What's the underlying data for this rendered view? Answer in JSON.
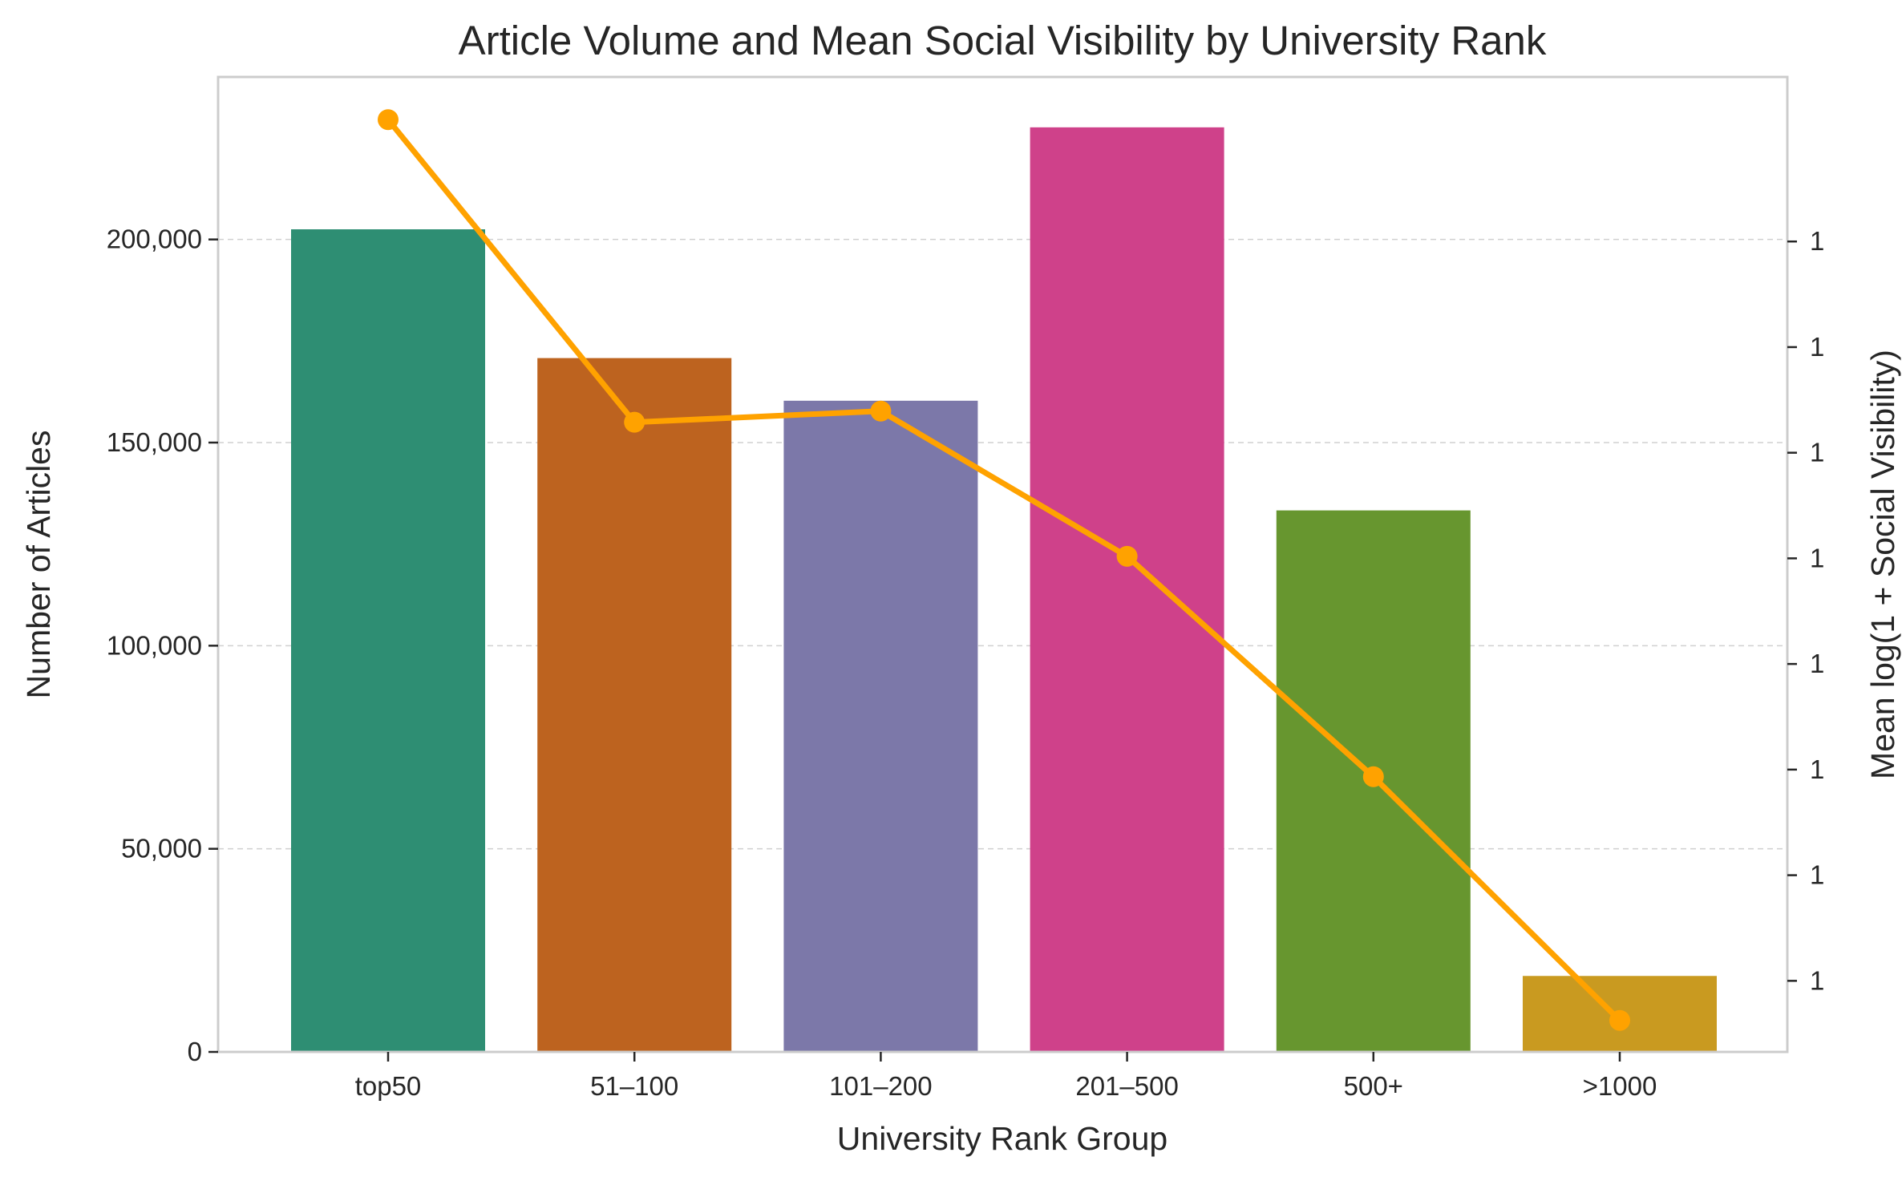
{
  "chart_data": {
    "type": "bar",
    "title": "Article Volume and Mean Social Visibility by University Rank",
    "xlabel": "University Rank Group",
    "ylabel": "Number of Articles",
    "y2label": "Mean log(1 + Social Visibility)",
    "categories": [
      "top50",
      "51–100",
      "101–200",
      "201–500",
      "500+",
      ">1000"
    ],
    "ylim": [
      0,
      240000
    ],
    "yticks": [
      0,
      50000,
      100000,
      150000,
      200000
    ],
    "ytick_labels": [
      "0",
      "50,000",
      "100,000",
      "150,000",
      "200,000"
    ],
    "y2lim": [
      1.0,
      1.48
    ],
    "y2ticks": [
      1.035,
      1.087,
      1.139,
      1.191,
      1.243,
      1.295,
      1.347,
      1.399
    ],
    "y2tick_labels": [
      "1",
      "1",
      "1",
      "1",
      "1",
      "1",
      "1",
      "1"
    ],
    "grid": "horizontal dashed",
    "series": [
      {
        "kind": "bar",
        "axis": "left",
        "values": [
          202500,
          170800,
          160300,
          227600,
          133300,
          18700
        ],
        "colors": [
          "#2e8e73",
          "#bd631f",
          "#7c78a9",
          "#cf418a",
          "#67962f",
          "#c99a20"
        ]
      },
      {
        "kind": "line",
        "axis": "right",
        "values": [
          1.459,
          1.31,
          1.3155,
          1.244,
          1.1355,
          1.0155
        ],
        "color": "#ffa200"
      }
    ]
  }
}
